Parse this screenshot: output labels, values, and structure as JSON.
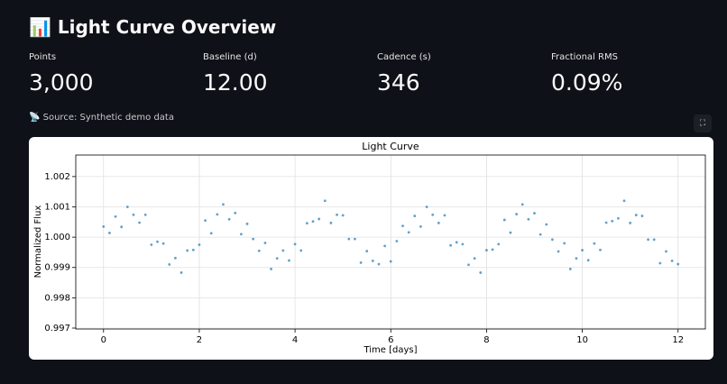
{
  "header": {
    "title": "📊 Light Curve Overview"
  },
  "metrics": [
    {
      "label": "Points",
      "value": "3,000"
    },
    {
      "label": "Baseline (d)",
      "value": "12.00"
    },
    {
      "label": "Cadence (s)",
      "value": "346"
    },
    {
      "label": "Fractional RMS",
      "value": "0.09%"
    }
  ],
  "source": "📡 Source: Synthetic demo data",
  "chart_data": {
    "type": "scatter",
    "title": "Light Curve",
    "x_label": "Time [days]",
    "y_label": "Normalized Flux",
    "color": "#1f77b4",
    "grid": true,
    "xlim": [
      -0.58,
      12.57
    ],
    "ylim": [
      0.99697,
      1.00271
    ],
    "xticks": [
      0,
      2,
      4,
      6,
      8,
      10,
      12
    ],
    "yticks": [
      0.997,
      0.998,
      0.999,
      {
        "value": 1,
        "label": "1.000"
      },
      1.001,
      1.002
    ],
    "x": [
      0,
      0.125,
      0.25,
      0.375,
      0.5,
      0.625,
      0.75,
      0.875,
      1,
      1.125,
      1.25,
      1.375,
      1.5,
      1.625,
      1.75,
      1.875,
      2,
      2.125,
      2.25,
      2.375,
      2.5,
      2.625,
      2.75,
      2.875,
      3,
      3.125,
      3.25,
      3.375,
      3.5,
      3.625,
      3.75,
      3.875,
      4,
      4.125,
      4.25,
      4.375,
      4.5,
      4.625,
      4.75,
      4.875,
      5,
      5.125,
      5.25,
      5.375,
      5.5,
      5.625,
      5.75,
      5.875,
      6,
      6.125,
      6.25,
      6.375,
      6.5,
      6.625,
      6.75,
      6.875,
      7,
      7.125,
      7.25,
      7.375,
      7.5,
      7.625,
      7.75,
      7.875,
      8,
      8.125,
      8.25,
      8.375,
      8.5,
      8.625,
      8.75,
      8.875,
      9,
      9.125,
      9.25,
      9.375,
      9.5,
      9.625,
      9.75,
      9.875,
      10,
      10.125,
      10.25,
      10.375,
      10.5,
      10.625,
      10.75,
      10.875,
      11,
      11.125,
      11.25,
      11.375,
      11.5,
      11.625,
      11.75,
      11.875,
      12
    ],
    "values": [
      1.00035,
      1.00014,
      1.00068,
      1.00034,
      1.001,
      1.00074,
      1.00048,
      1.00074,
      0.99975,
      0.99985,
      0.99979,
      0.9991,
      0.99931,
      0.99883,
      0.99956,
      0.99958,
      0.99975,
      1.00055,
      1.00013,
      1.00075,
      1.00108,
      1.00059,
      1.0008,
      1.0001,
      1.00044,
      0.99994,
      0.99955,
      0.99981,
      0.99895,
      0.9993,
      0.99956,
      0.99923,
      0.99977,
      0.99956,
      1.00046,
      1.00052,
      1.0006,
      1.0012,
      1.00047,
      1.00074,
      1.00072,
      0.99994,
      0.99994,
      0.99916,
      0.99954,
      0.99922,
      0.99911,
      0.99971,
      0.9992,
      0.99987,
      1.00037,
      1.00016,
      1.0007,
      1.00035,
      1.001,
      1.00074,
      1.00047,
      1.00072,
      0.99973,
      0.99983,
      0.99977,
      0.99909,
      0.9993,
      0.99883,
      0.99957,
      0.99959,
      0.99977,
      1.00057,
      1.00015,
      1.00076,
      1.00108,
      1.00059,
      1.00079,
      1.00009,
      1.00042,
      0.99992,
      0.99953,
      0.9998,
      0.99895,
      0.9993,
      0.99957,
      0.99924,
      0.99979,
      0.99958,
      1.00048,
      1.00053,
      1.00062,
      1.0012,
      1.00047,
      1.00073,
      1.0007,
      0.99992,
      0.99992,
      0.99914,
      0.99953,
      0.99922,
      0.99911
    ]
  }
}
